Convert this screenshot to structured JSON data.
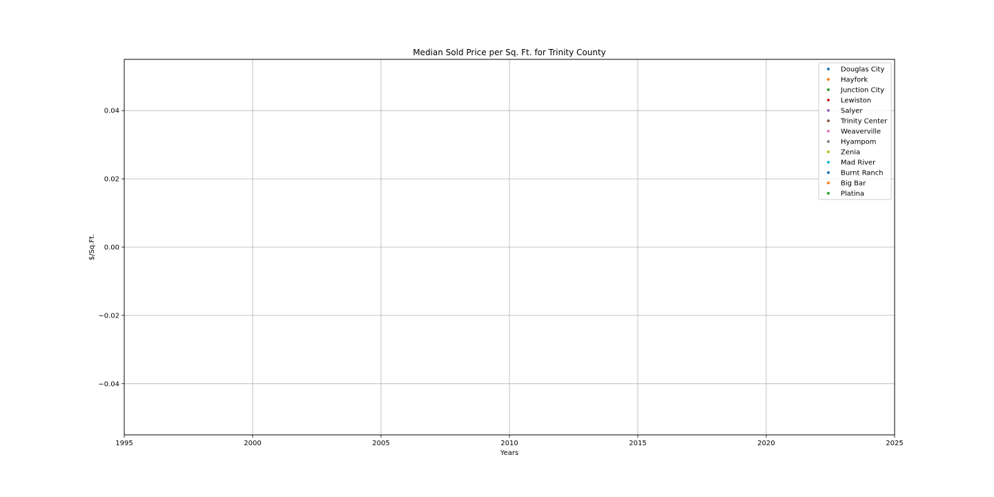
{
  "chart_data": {
    "type": "scatter",
    "title": "Median Sold Price per Sq. Ft. for Trinity County",
    "xlabel": "Years",
    "ylabel": "$/Sq.Ft.",
    "xlim": [
      1995,
      2025
    ],
    "ylim": [
      -0.055,
      0.055
    ],
    "x_ticks": [
      1995,
      2000,
      2005,
      2010,
      2015,
      2020,
      2025
    ],
    "y_ticks": [
      {
        "value": -0.04,
        "label": "−0.04"
      },
      {
        "value": -0.02,
        "label": "−0.02"
      },
      {
        "value": 0.0,
        "label": "0.00"
      },
      {
        "value": 0.02,
        "label": "0.02"
      },
      {
        "value": 0.04,
        "label": "0.04"
      }
    ],
    "grid": true,
    "legend_position": "top-right",
    "series": [
      {
        "name": "Douglas City",
        "color": "#1f77b4",
        "x": [],
        "y": []
      },
      {
        "name": "Hayfork",
        "color": "#ff7f0e",
        "x": [],
        "y": []
      },
      {
        "name": "Junction City",
        "color": "#2ca02c",
        "x": [],
        "y": []
      },
      {
        "name": "Lewiston",
        "color": "#d62728",
        "x": [],
        "y": []
      },
      {
        "name": "Salyer",
        "color": "#9467bd",
        "x": [],
        "y": []
      },
      {
        "name": "Trinity Center",
        "color": "#8c564b",
        "x": [],
        "y": []
      },
      {
        "name": "Weaverville",
        "color": "#e377c2",
        "x": [],
        "y": []
      },
      {
        "name": "Hyampom",
        "color": "#7f7f7f",
        "x": [],
        "y": []
      },
      {
        "name": "Zenia",
        "color": "#bcbd22",
        "x": [],
        "y": []
      },
      {
        "name": "Mad River",
        "color": "#17becf",
        "x": [],
        "y": []
      },
      {
        "name": "Burnt Ranch",
        "color": "#1f77b4",
        "x": [],
        "y": []
      },
      {
        "name": "Big Bar",
        "color": "#ff7f0e",
        "x": [],
        "y": []
      },
      {
        "name": "Platina",
        "color": "#2ca02c",
        "x": [],
        "y": []
      }
    ]
  }
}
